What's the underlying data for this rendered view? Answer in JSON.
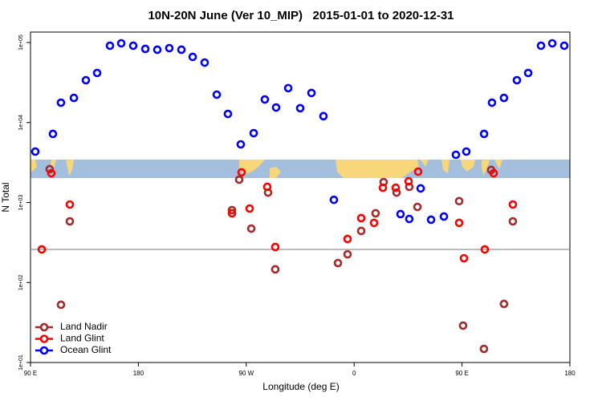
{
  "chart_data": {
    "type": "scatter",
    "title": "10N-20N June (Ver 10_MIP)   2015-01-01 to 2020-12-31",
    "x_label": "Longitude (deg E)",
    "y_label": "N Total",
    "log_y": true,
    "legend": "lower left",
    "xlim": [
      90,
      540
    ],
    "ylim": [
      10,
      135000
    ],
    "xticks": [
      {
        "value": 90,
        "label": "90 E"
      },
      {
        "value": 180,
        "label": "180"
      },
      {
        "value": 270,
        "label": "90 W"
      },
      {
        "value": 360,
        "label": "0"
      },
      {
        "value": 450,
        "label": "90 E"
      },
      {
        "value": 540,
        "label": "180"
      }
    ],
    "yticks": [
      {
        "value": 10,
        "label": "1e+01"
      },
      {
        "value": 100,
        "label": "1e+02"
      },
      {
        "value": 1000,
        "label": "1e+03"
      },
      {
        "value": 10000,
        "label": "1e+04"
      },
      {
        "value": 100000,
        "label": "1e+05"
      }
    ],
    "reference_line": 259,
    "series": [
      {
        "name": "Land Nadir",
        "color": "#a52a2a",
        "x": [
          106,
          115.4,
          122.8,
          258.1,
          264.1,
          274.2,
          288.2,
          294.2,
          346.5,
          354.5,
          365.9,
          377.9,
          384.6,
          395.4,
          406,
          412.8,
          447.6,
          450.9,
          468.3,
          474.3,
          485,
          492.4
        ],
        "values": [
          2610,
          52.7,
          581,
          803,
          1930,
          472,
          1330,
          146,
          175,
          225,
          441,
          733,
          1800,
          1330,
          1570,
          881,
          1040,
          28.9,
          14.8,
          2550,
          54,
          581
        ]
      },
      {
        "name": "Land Glint",
        "color": "#ff0000",
        "x": [
          99.4,
          107.4,
          122.8,
          258.1,
          266.1,
          272.8,
          287.5,
          294.2,
          354.5,
          365.9,
          376.6,
          384,
          394.7,
          405.4,
          413.4,
          447.6,
          451.6,
          469,
          476.4,
          492.4
        ],
        "values": [
          259,
          2320,
          944,
          733,
          2380,
          841,
          1570,
          278,
          350,
          638,
          556,
          1530,
          1530,
          1840,
          2430,
          556,
          201,
          259,
          2320,
          944
        ]
      },
      {
        "name": "Ocean Glint",
        "color": "#0000ff",
        "x": [
          94,
          108.7,
          115.4,
          126.2,
          136.2,
          145.6,
          156.3,
          165.7,
          175.7,
          185.8,
          195.8,
          205.8,
          215.9,
          225.3,
          235.3,
          245.4,
          254.7,
          265.4,
          276.2,
          285.5,
          294.9,
          305,
          315,
          324.4,
          334.4,
          343.1,
          398.7,
          406,
          415.5,
          424.2,
          434.9,
          444.9,
          453.6,
          468.4,
          475,
          485,
          495.8,
          505.2,
          515.9,
          525.3,
          535.3
        ],
        "values": [
          4330,
          7200,
          17700,
          20300,
          33800,
          41600,
          91200,
          97700,
          91200,
          83200,
          81300,
          85100,
          81300,
          66100,
          56100,
          22300,
          12800,
          5330,
          7360,
          19400,
          15400,
          26900,
          15100,
          23400,
          12000,
          1080,
          716,
          623,
          1500,
          609,
          668,
          3950,
          4330,
          7200,
          17700,
          20300,
          33800,
          41600,
          91200,
          97700,
          91200
        ]
      }
    ]
  }
}
